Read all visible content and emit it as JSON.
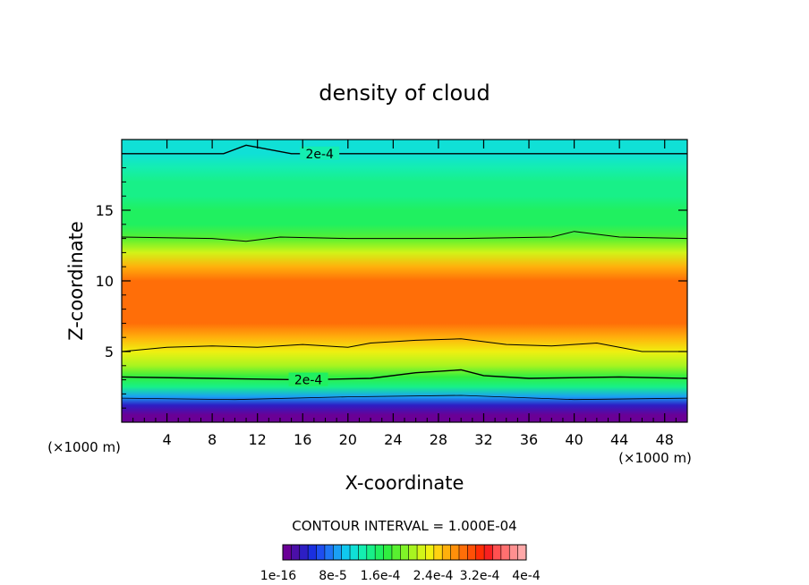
{
  "chart_data": {
    "type": "heatmap",
    "title": "density of cloud",
    "xlabel": "X-coordinate",
    "ylabel": "Z-coordinate",
    "x_unit_left": "(×1000 m)",
    "x_unit_right": "(×1000 m)",
    "xlim": [
      0,
      50
    ],
    "ylim": [
      0,
      20
    ],
    "x_ticks": [
      "4",
      "8",
      "12",
      "16",
      "20",
      "24",
      "28",
      "32",
      "36",
      "40",
      "44",
      "48"
    ],
    "y_ticks": [
      "5",
      "10",
      "15"
    ],
    "contour_interval_text": "CONTOUR INTERVAL = 1.000E-04",
    "contour_labels": [
      "2e-4",
      "2e-4"
    ],
    "colorbar_labels": [
      "1e-16",
      "8e-5",
      "1.6e-4",
      "2.4e-4",
      "3.2e-4",
      "4e-4"
    ],
    "colorbar_range": [
      0,
      0.0004
    ],
    "colormap": [
      "#6a0096",
      "#4b0fa8",
      "#2d1ec4",
      "#1a2fe0",
      "#1e4ef0",
      "#1f75f5",
      "#1aa0f5",
      "#10c8ef",
      "#10e0d6",
      "#14eeb0",
      "#18f088",
      "#20f060",
      "#30ee40",
      "#58f030",
      "#80f428",
      "#a8f420",
      "#d2f418",
      "#f0f010",
      "#ffd210",
      "#ffb00c",
      "#ff900a",
      "#ff6e08",
      "#ff5006",
      "#ff2d05",
      "#f72020",
      "#ff5050",
      "#ff7070",
      "#ff9090",
      "#ffa8a8"
    ],
    "vertical_profile": {
      "z": [
        0.5,
        1.2,
        1.8,
        2.5,
        3.2,
        4.0,
        5.0,
        6.0,
        7.0,
        8.0,
        9.0,
        10.0,
        11.0,
        12.0,
        13.0,
        14.0,
        15.0,
        16.0,
        17.0,
        18.0,
        19.0,
        20.0
      ],
      "density": [
        1e-05,
        4e-05,
        0.0001,
        0.00016,
        0.0002,
        0.00024,
        0.00028,
        0.00031,
        0.00034,
        0.00035,
        0.00035,
        0.00034,
        0.00031,
        0.00026,
        0.00021,
        0.00019,
        0.00018,
        0.00017,
        0.00016,
        0.00015,
        0.00014,
        0.00013
      ]
    },
    "contours_1e-4_z": [
      {
        "x": 0,
        "z": 1.7
      },
      {
        "x": 10,
        "z": 1.6
      },
      {
        "x": 20,
        "z": 1.8
      },
      {
        "x": 30,
        "z": 1.9
      },
      {
        "x": 40,
        "z": 1.6
      },
      {
        "x": 50,
        "z": 1.7
      }
    ],
    "contour_2e-4_lower": [
      {
        "x": 0,
        "z": 3.2
      },
      {
        "x": 8,
        "z": 3.1
      },
      {
        "x": 16,
        "z": 3.0
      },
      {
        "x": 22,
        "z": 3.1
      },
      {
        "x": 26,
        "z": 3.5
      },
      {
        "x": 30,
        "z": 3.7
      },
      {
        "x": 32,
        "z": 3.3
      },
      {
        "x": 36,
        "z": 3.1
      },
      {
        "x": 44,
        "z": 3.2
      },
      {
        "x": 50,
        "z": 3.1
      }
    ],
    "contour_3e-4_lower": [
      {
        "x": 0,
        "z": 5.0
      },
      {
        "x": 4,
        "z": 5.3
      },
      {
        "x": 8,
        "z": 5.4
      },
      {
        "x": 12,
        "z": 5.3
      },
      {
        "x": 16,
        "z": 5.5
      },
      {
        "x": 20,
        "z": 5.3
      },
      {
        "x": 22,
        "z": 5.6
      },
      {
        "x": 26,
        "z": 5.8
      },
      {
        "x": 30,
        "z": 5.9
      },
      {
        "x": 34,
        "z": 5.5
      },
      {
        "x": 38,
        "z": 5.4
      },
      {
        "x": 42,
        "z": 5.6
      },
      {
        "x": 46,
        "z": 5.0
      },
      {
        "x": 50,
        "z": 5.0
      }
    ],
    "contour_3e-4_upper": [
      {
        "x": 0,
        "z": 13.1
      },
      {
        "x": 8,
        "z": 13.0
      },
      {
        "x": 11,
        "z": 12.8
      },
      {
        "x": 14,
        "z": 13.1
      },
      {
        "x": 20,
        "z": 13.0
      },
      {
        "x": 30,
        "z": 13.0
      },
      {
        "x": 38,
        "z": 13.1
      },
      {
        "x": 40,
        "z": 13.5
      },
      {
        "x": 44,
        "z": 13.1
      },
      {
        "x": 50,
        "z": 13.0
      }
    ],
    "contour_2e-4_upper": [
      {
        "x": 0,
        "z": 19.0
      },
      {
        "x": 9,
        "z": 19.0
      },
      {
        "x": 11,
        "z": 19.6
      },
      {
        "x": 15,
        "z": 19.0
      },
      {
        "x": 50,
        "z": 19.0
      }
    ]
  }
}
